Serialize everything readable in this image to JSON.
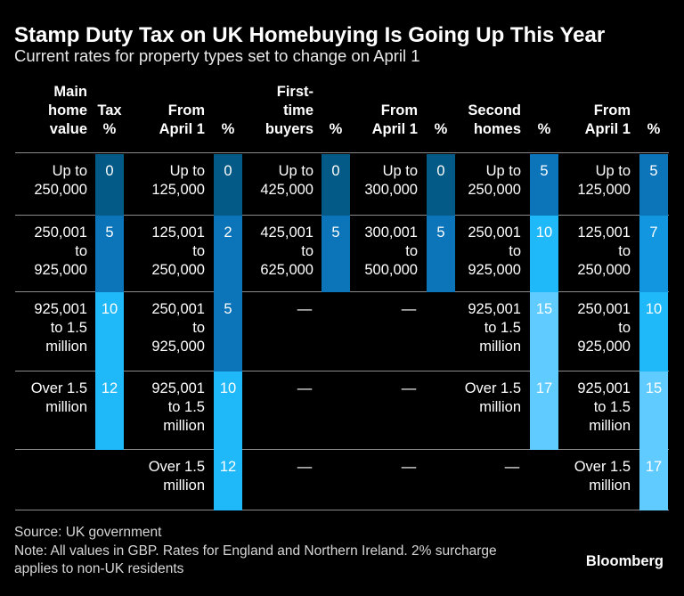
{
  "title": "Stamp Duty Tax on UK Homebuying Is Going Up This Year",
  "subtitle": "Current rates for property types set to change on April 1",
  "source": "Source: UK government",
  "note": "Note: All values in GBP. Rates for England and Northern Ireland. 2% surcharge applies to non-UK residents",
  "logo": "Bloomberg",
  "colors": [
    "#045a87",
    "#0c74b8",
    "#1296e0",
    "#1fb8f8",
    "#60cbff"
  ],
  "chart_data": {
    "type": "table",
    "columns": [
      {
        "label": "Main\nhome\nvalue",
        "kind": "band"
      },
      {
        "label": "Tax\n%",
        "kind": "pct"
      },
      {
        "label": "From\nApril 1",
        "kind": "band"
      },
      {
        "label": "%",
        "kind": "pct"
      },
      {
        "label": "First-\ntime\nbuyers",
        "kind": "band"
      },
      {
        "label": "%",
        "kind": "pct"
      },
      {
        "label": "From\nApril 1",
        "kind": "band"
      },
      {
        "label": "%",
        "kind": "pct"
      },
      {
        "label": "Second\nhomes",
        "kind": "band"
      },
      {
        "label": "%",
        "kind": "pct"
      },
      {
        "label": "From\nApril 1",
        "kind": "band"
      },
      {
        "label": "%",
        "kind": "pct"
      }
    ],
    "rows": [
      [
        "Up to\n250,000",
        0,
        "Up to\n125,000",
        0,
        "Up to\n425,000",
        0,
        "Up to\n300,000",
        0,
        "Up to\n250,000",
        5,
        "Up to\n125,000",
        5
      ],
      [
        "250,001\nto\n925,000",
        5,
        "125,001\nto\n250,000",
        2,
        "425,001\nto\n625,000",
        5,
        "300,001\nto\n500,000",
        5,
        "250,001\nto\n925,000",
        10,
        "125,001\nto\n250,000",
        7
      ],
      [
        "925,001\nto 1.5\nmillion",
        10,
        "250,001\nto\n925,000",
        5,
        "—",
        null,
        "—",
        null,
        "925,001\nto 1.5\nmillion",
        15,
        "250,001\nto\n925,000",
        10
      ],
      [
        "Over 1.5\nmillion",
        12,
        "925,001\nto 1.5\nmillion",
        10,
        "—",
        null,
        "—",
        null,
        "Over 1.5\nmillion",
        17,
        "925,001\nto 1.5\nmillion",
        15
      ],
      [
        "",
        null,
        "Over 1.5\nmillion",
        12,
        "—",
        null,
        "—",
        null,
        "—",
        null,
        "Over 1.5\nmillion",
        17
      ]
    ]
  }
}
